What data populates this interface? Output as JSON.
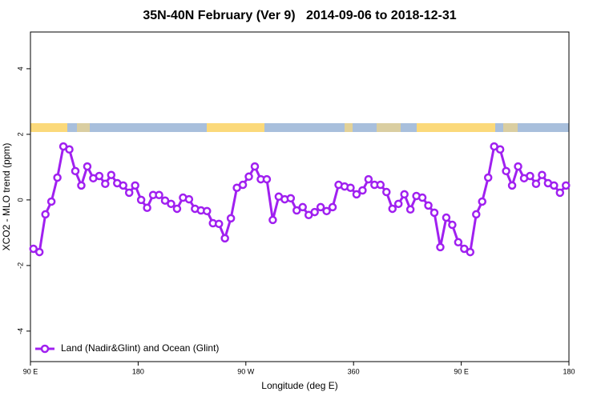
{
  "chart_data": {
    "type": "line",
    "title": "35N-40N February (Ver 9)   2014-09-06 to 2018-12-31",
    "xlabel": "Longitude (deg E)",
    "ylabel": "XCO2 - MLO trend (ppm)",
    "x": [
      92.5,
      97.5,
      102.5,
      107.5,
      112.5,
      117.5,
      122.5,
      127.5,
      132.5,
      137.5,
      142.5,
      147.5,
      152.5,
      157.5,
      162.5,
      167.5,
      172.5,
      177.5,
      182.5,
      187.5,
      192.5,
      197.5,
      202.5,
      207.5,
      212.5,
      217.5,
      222.5,
      227.5,
      232.5,
      237.5,
      242.5,
      247.5,
      252.5,
      257.5,
      262.5,
      267.5,
      272.5,
      277.5,
      282.5,
      287.5,
      292.5,
      297.5,
      302.5,
      307.5,
      312.5,
      317.5,
      322.5,
      327.5,
      332.5,
      337.5,
      342.5,
      347.5,
      352.5,
      357.5,
      362.5,
      367.5,
      372.5,
      377.5,
      382.5,
      387.5,
      392.5,
      397.5,
      402.5,
      407.5,
      412.5,
      417.5,
      422.5,
      427.5,
      432.5,
      437.5,
      442.5,
      447.5,
      452.5,
      457.5,
      462.5,
      467.5,
      472.5,
      477.5,
      482.5,
      487.5,
      492.5,
      497.5,
      502.5,
      507.5,
      512.5,
      517.5,
      522.5,
      527.5,
      532.5,
      537.5
    ],
    "series": [
      {
        "name": "Land (Nadir&Glint) and Ocean (Glint)",
        "color": "#a020f0",
        "values": [
          -1.49,
          -1.59,
          -0.44,
          -0.05,
          0.68,
          1.63,
          1.54,
          0.88,
          0.44,
          1.02,
          0.66,
          0.73,
          0.49,
          0.76,
          0.51,
          0.44,
          0.22,
          0.44,
          0,
          -0.24,
          0.15,
          0.15,
          -0.02,
          -0.12,
          -0.27,
          0.07,
          0.02,
          -0.27,
          -0.32,
          -0.34,
          -0.71,
          -0.73,
          -1.17,
          -0.56,
          0.37,
          0.46,
          0.71,
          1.02,
          0.63,
          0.63,
          -0.61,
          0.1,
          0.02,
          0.05,
          -0.32,
          -0.22,
          -0.46,
          -0.37,
          -0.22,
          -0.34,
          -0.22,
          0.46,
          0.41,
          0.37,
          0.17,
          0.29,
          0.63,
          0.46,
          0.46,
          0.24,
          -0.27,
          -0.12,
          0.17,
          -0.29,
          0.12,
          0.07,
          -0.17,
          -0.39,
          -1.44,
          -0.54,
          -0.76,
          -1.29,
          -1.49,
          -1.59,
          -0.44,
          -0.05,
          0.68,
          1.63,
          1.54,
          0.88,
          0.44,
          1.02,
          0.66,
          0.73,
          0.49,
          0.76,
          0.51,
          0.44,
          0.22,
          0.44
        ]
      }
    ],
    "xlim": [
      90,
      540
    ],
    "xticks": [
      {
        "value": 90,
        "label": "90 E"
      },
      180,
      {
        "value": 270,
        "label": "90 W"
      },
      360,
      {
        "value": 450,
        "label": "90 E"
      },
      {
        "value": 540,
        "label": "180"
      }
    ],
    "ylim": [
      -4.93,
      5.12
    ],
    "yticks": [
      -4,
      -2,
      0,
      2,
      4
    ],
    "legend": "bottom-left"
  }
}
